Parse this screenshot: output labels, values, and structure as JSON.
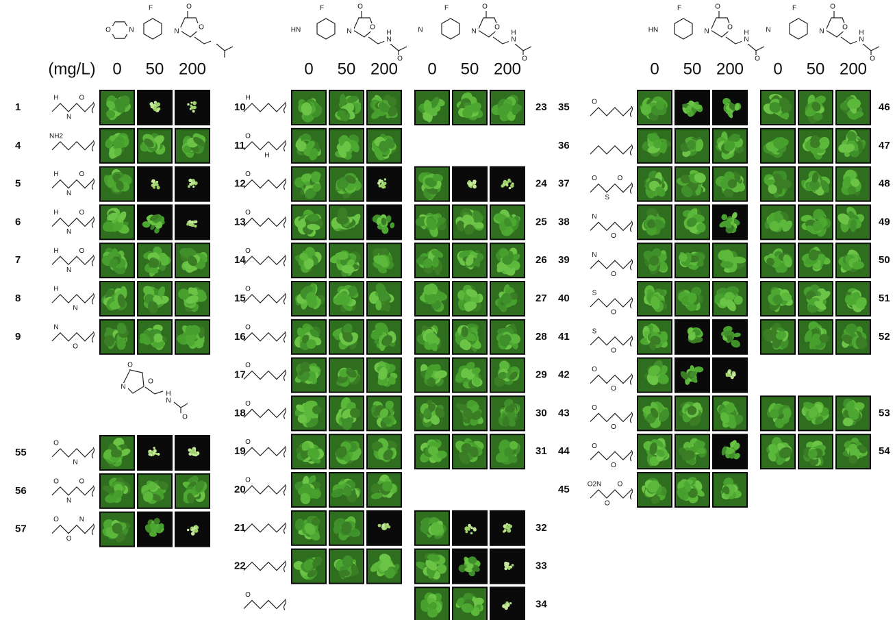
{
  "units": "(mg/L)",
  "concentrations": [
    "0",
    "50",
    "200"
  ],
  "scaffolds": [
    {
      "atoms": [
        "O",
        "N",
        "F",
        "O",
        "N",
        "O"
      ]
    },
    {
      "atoms": [
        "HN",
        "F",
        "N",
        "O",
        "O",
        "H",
        "N",
        "O"
      ]
    },
    {
      "atoms": [
        "N",
        "F",
        "N",
        "O",
        "O",
        "H",
        "N",
        "O"
      ]
    },
    {
      "atoms": [
        "HN",
        "F",
        "N",
        "O",
        "O",
        "H",
        "N",
        "O"
      ]
    },
    {
      "atoms": [
        "N",
        "F",
        "N",
        "O",
        "O",
        "H",
        "N",
        "O"
      ]
    },
    {
      "atoms": [
        "O",
        "N",
        "O",
        "H",
        "N",
        "O"
      ]
    }
  ],
  "panels": [
    {
      "compounds": [
        {
          "id": "1",
          "atoms": [
            "H",
            "N",
            "O"
          ]
        },
        {
          "id": "4",
          "atoms": [
            "NH2"
          ]
        },
        {
          "id": "5",
          "atoms": [
            "H",
            "N",
            "O"
          ]
        },
        {
          "id": "6",
          "atoms": [
            "H",
            "N",
            "O"
          ]
        },
        {
          "id": "7",
          "atoms": [
            "H",
            "N",
            "O"
          ]
        },
        {
          "id": "8",
          "atoms": [
            "H",
            "N"
          ]
        },
        {
          "id": "9",
          "atoms": [
            "N",
            "O"
          ]
        }
      ]
    },
    {
      "compounds": [
        {
          "id": "55",
          "atoms": [
            "O",
            "N"
          ]
        },
        {
          "id": "56",
          "atoms": [
            "O",
            "N",
            "O"
          ]
        },
        {
          "id": "57",
          "atoms": [
            "O",
            "O",
            "N"
          ]
        }
      ]
    },
    {
      "compounds": [
        {
          "id": "10",
          "atoms": [
            "H"
          ]
        },
        {
          "id": "11",
          "atoms": [
            "O",
            "H"
          ]
        },
        {
          "id": "12",
          "atoms": [
            "O"
          ]
        },
        {
          "id": "13",
          "atoms": [
            "O"
          ]
        },
        {
          "id": "14",
          "atoms": [
            "O"
          ]
        },
        {
          "id": "15",
          "atoms": [
            "O"
          ]
        },
        {
          "id": "16",
          "atoms": [
            "O"
          ]
        },
        {
          "id": "17",
          "atoms": [
            "O"
          ]
        },
        {
          "id": "18",
          "atoms": [
            "O"
          ]
        },
        {
          "id": "19",
          "atoms": [
            "O"
          ]
        },
        {
          "id": "20",
          "atoms": [
            "O"
          ]
        },
        {
          "id": "21",
          "atoms": []
        },
        {
          "id": "22",
          "atoms": []
        }
      ]
    },
    {
      "compounds": [
        {
          "id": "23",
          "atoms": []
        },
        {
          "id": "24",
          "atoms": []
        },
        {
          "id": "25",
          "atoms": []
        },
        {
          "id": "26",
          "atoms": []
        },
        {
          "id": "27",
          "atoms": []
        },
        {
          "id": "28",
          "atoms": []
        },
        {
          "id": "29",
          "atoms": []
        },
        {
          "id": "30",
          "atoms": []
        },
        {
          "id": "31",
          "atoms": []
        },
        {
          "id": "32",
          "atoms": []
        },
        {
          "id": "33",
          "atoms": []
        },
        {
          "id": "34",
          "atoms": [
            "O"
          ]
        }
      ]
    },
    {
      "compounds": [
        {
          "id": "35",
          "atoms": [
            "O"
          ]
        },
        {
          "id": "36",
          "atoms": []
        },
        {
          "id": "37",
          "atoms": [
            "O",
            "S",
            "O"
          ]
        },
        {
          "id": "38",
          "atoms": [
            "N",
            "O"
          ]
        },
        {
          "id": "39",
          "atoms": [
            "N",
            "O"
          ]
        },
        {
          "id": "40",
          "atoms": [
            "S",
            "O"
          ]
        },
        {
          "id": "41",
          "atoms": [
            "S",
            "O"
          ]
        },
        {
          "id": "42",
          "atoms": [
            "O",
            "O"
          ]
        },
        {
          "id": "43",
          "atoms": [
            "O",
            "O"
          ]
        },
        {
          "id": "44",
          "atoms": [
            "O",
            "O"
          ]
        },
        {
          "id": "45",
          "atoms": [
            "O2N",
            "O",
            "O"
          ]
        }
      ]
    },
    {
      "compounds": [
        {
          "id": "46",
          "atoms": []
        },
        {
          "id": "47",
          "atoms": []
        },
        {
          "id": "48",
          "atoms": []
        },
        {
          "id": "49",
          "atoms": []
        },
        {
          "id": "50",
          "atoms": []
        },
        {
          "id": "51",
          "atoms": []
        },
        {
          "id": "52",
          "atoms": []
        },
        {
          "id": "53",
          "atoms": []
        },
        {
          "id": "54",
          "atoms": []
        }
      ]
    }
  ]
}
